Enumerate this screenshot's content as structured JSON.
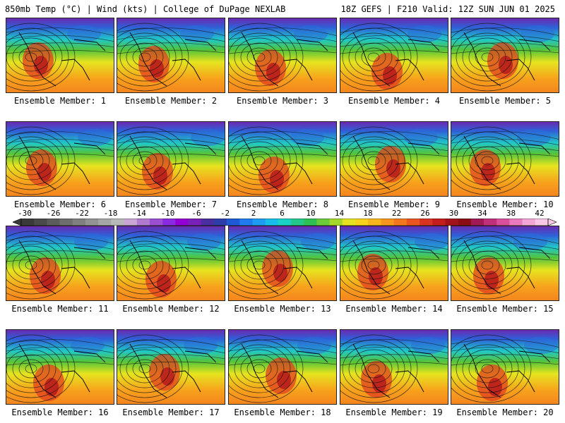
{
  "header": {
    "left": "850mb Temp (°C) | Wind (kts) | College of DuPage NEXLAB",
    "right": "18Z GEFS | F210 Valid: 12Z SUN JUN 01 2025"
  },
  "panels": [
    {
      "label": "Ensemble Member: 1"
    },
    {
      "label": "Ensemble Member: 2"
    },
    {
      "label": "Ensemble Member: 3"
    },
    {
      "label": "Ensemble Member: 4"
    },
    {
      "label": "Ensemble Member: 5"
    },
    {
      "label": "Ensemble Member: 6"
    },
    {
      "label": "Ensemble Member: 7"
    },
    {
      "label": "Ensemble Member: 8"
    },
    {
      "label": "Ensemble Member: 9"
    },
    {
      "label": "Ensemble Member: 10"
    },
    {
      "label": "Ensemble Member: 11"
    },
    {
      "label": "Ensemble Member: 12"
    },
    {
      "label": "Ensemble Member: 13"
    },
    {
      "label": "Ensemble Member: 14"
    },
    {
      "label": "Ensemble Member: 15"
    },
    {
      "label": "Ensemble Member: 16"
    },
    {
      "label": "Ensemble Member: 17"
    },
    {
      "label": "Ensemble Member: 18"
    },
    {
      "label": "Ensemble Member: 19"
    },
    {
      "label": "Ensemble Member: 20"
    }
  ],
  "colorbar": {
    "ticks": [
      "-30",
      "-26",
      "-22",
      "-18",
      "-14",
      "-10",
      "-6",
      "-2",
      "2",
      "6",
      "10",
      "14",
      "18",
      "22",
      "26",
      "30",
      "34",
      "38",
      "42"
    ],
    "colors": [
      "#3a3a3a",
      "#4a4a4a",
      "#5c5c5c",
      "#6e6e6e",
      "#808080",
      "#939393",
      "#a6a6a6",
      "#b8b8b8",
      "#c9a6d6",
      "#b07ad0",
      "#9b4fd0",
      "#8a2be2",
      "#9400d3",
      "#7a1fb8",
      "#4b2f9e",
      "#2e3ea8",
      "#1e5ad6",
      "#1f7bef",
      "#1d9cf2",
      "#17bde8",
      "#19d1c4",
      "#22c98a",
      "#2fbf55",
      "#6cc93a",
      "#a6d82c",
      "#e3e41f",
      "#f6d31a",
      "#f9b51b",
      "#f7961d",
      "#f2771f",
      "#ea5520",
      "#d93322",
      "#c41d1d",
      "#a3141a",
      "#8a0d15",
      "#a01b56",
      "#c0307a",
      "#d84f9c",
      "#e97bbd",
      "#f3a6d6",
      "#f8c7e6"
    ]
  }
}
